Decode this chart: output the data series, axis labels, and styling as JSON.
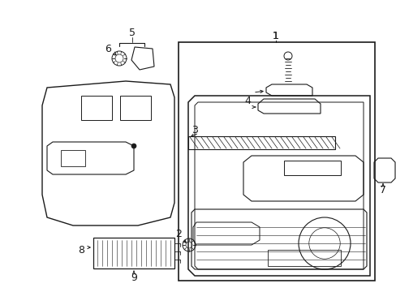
{
  "bg_color": "#ffffff",
  "line_color": "#1a1a1a",
  "fig_width": 4.89,
  "fig_height": 3.6,
  "dpi": 100,
  "label_fontsize": 9
}
